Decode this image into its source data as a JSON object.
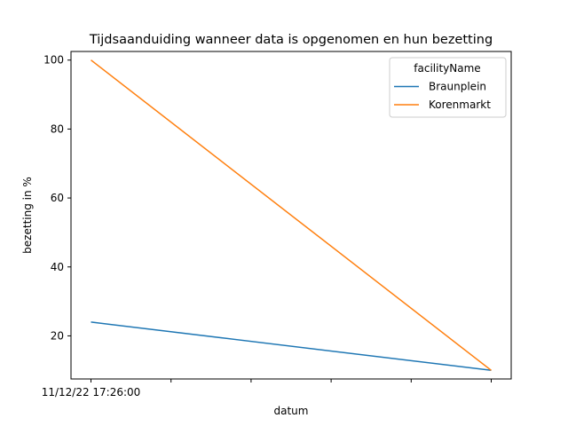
{
  "chart_data": {
    "type": "line",
    "title": "Tijdsaanduiding wanneer data is opgenomen en hun bezetting",
    "xlabel": "datum",
    "ylabel": "bezetting in %",
    "x_tick_labels": [
      "11/12/22 17:26:00",
      "",
      "",
      "",
      "",
      ""
    ],
    "y_ticks": [
      20,
      40,
      60,
      80,
      100
    ],
    "ylim": [
      7.5,
      102.5
    ],
    "grid": false,
    "legend": {
      "title": "facilityName",
      "placement": "top-right"
    },
    "series": [
      {
        "name": "Braunplein",
        "color": "#1f77b4",
        "values": [
          24,
          10
        ]
      },
      {
        "name": "Korenmarkt",
        "color": "#ff7f0e",
        "values": [
          100,
          10
        ]
      }
    ]
  }
}
